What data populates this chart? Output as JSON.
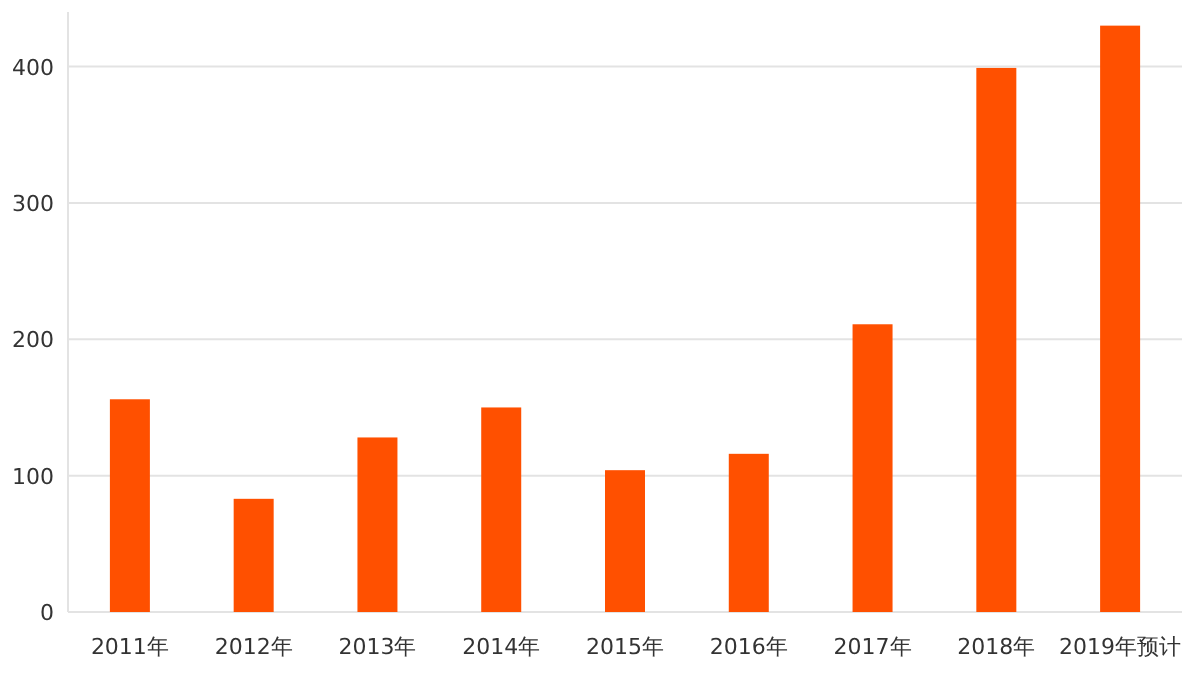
{
  "chart_data": {
    "type": "bar",
    "categories": [
      "2011年",
      "2012年",
      "2013年",
      "2014年",
      "2015年",
      "2016年",
      "2017年",
      "2018年",
      "2019年预计"
    ],
    "values": [
      156,
      83,
      128,
      150,
      104,
      116,
      211,
      399,
      430
    ],
    "color": "#ff5000",
    "ylim": [
      0,
      440
    ],
    "yticks": [
      0,
      100,
      200,
      300,
      400
    ],
    "grid": "y"
  }
}
